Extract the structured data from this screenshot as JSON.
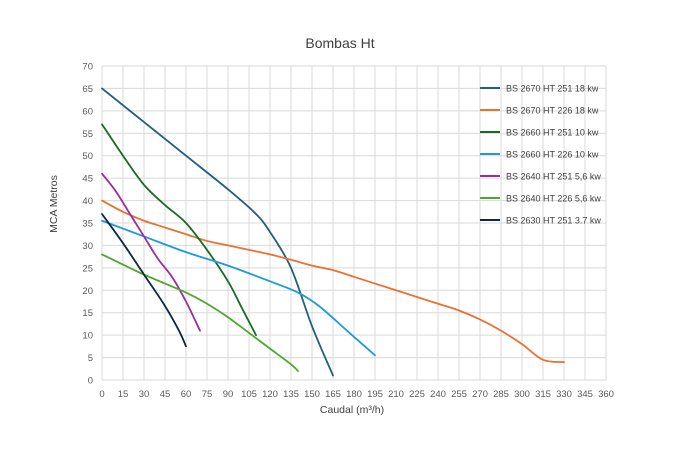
{
  "chart_data": {
    "type": "line",
    "title": "Bombas Ht",
    "xlabel": "Caudal (m³/h)",
    "ylabel": "MCA Metros",
    "xlim": [
      0,
      360
    ],
    "ylim": [
      0,
      70
    ],
    "xticks": [
      0,
      15,
      30,
      45,
      60,
      75,
      90,
      105,
      120,
      135,
      150,
      165,
      180,
      195,
      210,
      225,
      240,
      255,
      270,
      285,
      300,
      315,
      330,
      345,
      360
    ],
    "yticks": [
      0,
      5,
      10,
      15,
      20,
      25,
      30,
      35,
      40,
      45,
      50,
      55,
      60,
      65,
      70
    ],
    "grid": true,
    "legend_position": "right",
    "series": [
      {
        "name": "BS 2670 HT 251 18 kw",
        "color": "#1f5f7f",
        "x": [
          0,
          30,
          60,
          90,
          110,
          120,
          135,
          150,
          165
        ],
        "y": [
          65,
          57.5,
          50,
          42.5,
          37,
          33,
          25,
          12,
          1
        ]
      },
      {
        "name": "BS 2670 HT 226 18 kw",
        "color": "#e97132",
        "x": [
          0,
          15,
          30,
          45,
          60,
          75,
          90,
          105,
          120,
          135,
          150,
          165,
          180,
          195,
          210,
          225,
          240,
          255,
          270,
          285,
          300,
          315,
          330
        ],
        "y": [
          40,
          37.5,
          35.5,
          34,
          32.5,
          31,
          30,
          29,
          28,
          26.8,
          25.5,
          24.5,
          23,
          21.5,
          20,
          18.5,
          17,
          15.5,
          13.5,
          11,
          8,
          4.5,
          4
        ]
      },
      {
        "name": "BS 2660 HT 251 10 kw",
        "color": "#196b24",
        "x": [
          0,
          15,
          30,
          45,
          60,
          75,
          90,
          100,
          110
        ],
        "y": [
          57,
          50,
          43.5,
          39,
          35,
          29,
          22,
          16,
          10
        ]
      },
      {
        "name": "BS 2660 HT 226 10 kw",
        "color": "#1e9ad6",
        "x": [
          0,
          30,
          60,
          90,
          120,
          140,
          155,
          175,
          195
        ],
        "y": [
          35.5,
          32,
          28.5,
          25.5,
          22,
          19.5,
          16.5,
          11,
          5.5
        ]
      },
      {
        "name": "BS 2640 HT 251 5,6 kw",
        "color": "#9b2d9e",
        "x": [
          0,
          10,
          20,
          30,
          40,
          50,
          60,
          70
        ],
        "y": [
          46,
          42,
          37,
          32,
          27,
          23,
          17.5,
          11
        ]
      },
      {
        "name": "BS 2640 HT 226 5,6 kw",
        "color": "#4ea72e",
        "x": [
          0,
          30,
          60,
          75,
          90,
          105,
          120,
          135,
          140
        ],
        "y": [
          28,
          23.5,
          19.5,
          17,
          14,
          10.5,
          7,
          3.5,
          2
        ]
      },
      {
        "name": "BS 2630 HT 251 3.7 kw",
        "color": "#0e2841",
        "x": [
          0,
          15,
          30,
          45,
          55,
          60
        ],
        "y": [
          37,
          30.5,
          23.5,
          16.5,
          11,
          7.5
        ]
      }
    ]
  }
}
